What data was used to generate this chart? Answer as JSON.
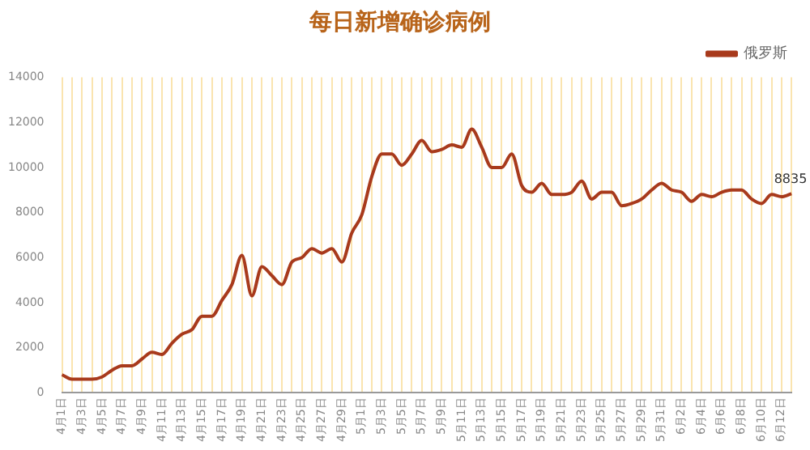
{
  "chart_data": {
    "type": "line",
    "title": "每日新增确诊病例",
    "categories": [
      "4月1日",
      null,
      "4月3日",
      null,
      "4月5日",
      null,
      "4月7日",
      null,
      "4月9日",
      null,
      "4月11日",
      null,
      "4月13日",
      null,
      "4月15日",
      null,
      "4月17日",
      null,
      "4月19日",
      null,
      "4月21日",
      null,
      "4月23日",
      null,
      "4月25日",
      null,
      "4月27日",
      null,
      "4月29日",
      null,
      "5月1日",
      null,
      "5月3日",
      null,
      "5月5日",
      null,
      "5月7日",
      null,
      "5月9日",
      null,
      "5月11日",
      null,
      "5月13日",
      null,
      "5月15日",
      null,
      "5月17日",
      null,
      "5月19日",
      null,
      "5月21日",
      null,
      "5月23日",
      null,
      "5月25日",
      null,
      "5月27日",
      null,
      "5月29日",
      null,
      "5月31日",
      null,
      "6月2日",
      null,
      "6月4日",
      null,
      "6月6日",
      null,
      "6月8日",
      null,
      "6月10日",
      null,
      "6月12日",
      null
    ],
    "series": [
      {
        "name": "俄罗斯",
        "color": "#a83a1c",
        "values": [
          800,
          600,
          600,
          600,
          700,
          1000,
          1200,
          1200,
          1500,
          1800,
          1700,
          2200,
          2600,
          2800,
          3400,
          3400,
          4100,
          4800,
          6100,
          4300,
          5600,
          5200,
          4800,
          5800,
          6000,
          6400,
          6200,
          6400,
          5800,
          7100,
          7900,
          9600,
          10600,
          10600,
          10100,
          10600,
          11200,
          10700,
          10800,
          11000,
          10900,
          11700,
          10900,
          10000,
          10000,
          10600,
          9200,
          8900,
          9300,
          8800,
          8800,
          8900,
          9400,
          8600,
          8900,
          8900,
          8300,
          8400,
          8600,
          9000,
          9300,
          9000,
          8900,
          8500,
          8800,
          8700,
          8900,
          9000,
          9000,
          8600,
          8400,
          8800,
          8700,
          8835
        ],
        "value_labels": [
          null,
          null,
          null,
          null,
          null,
          null,
          null,
          null,
          null,
          null,
          null,
          null,
          null,
          null,
          null,
          null,
          null,
          null,
          null,
          null,
          null,
          null,
          null,
          null,
          null,
          null,
          null,
          null,
          null,
          null,
          null,
          null,
          null,
          null,
          null,
          null,
          null,
          null,
          null,
          null,
          null,
          null,
          null,
          null,
          null,
          null,
          null,
          null,
          null,
          null,
          null,
          null,
          null,
          null,
          null,
          null,
          null,
          null,
          null,
          null,
          null,
          null,
          null,
          null,
          null,
          null,
          null,
          null,
          null,
          null,
          null,
          null,
          null,
          "8835"
        ]
      }
    ],
    "ylim": [
      0,
      14000
    ],
    "yticks": [
      0,
      2000,
      4000,
      6000,
      8000,
      10000,
      12000,
      14000
    ],
    "grid": "x",
    "legend": "top right",
    "marker": "none"
  }
}
